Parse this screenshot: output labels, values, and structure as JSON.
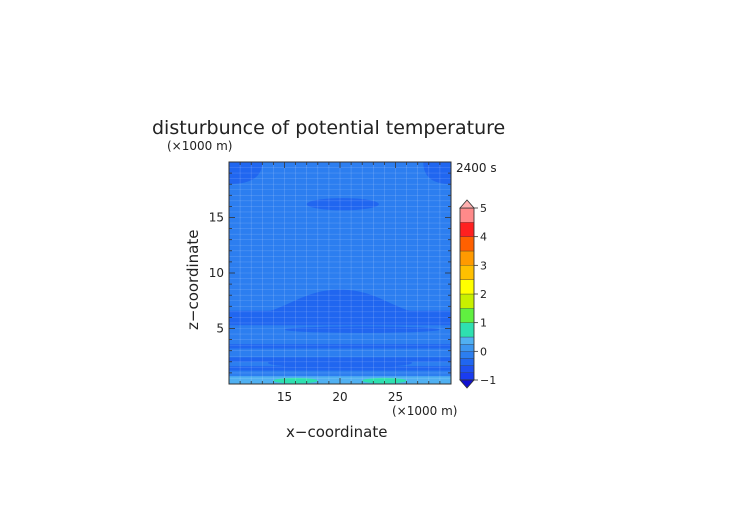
{
  "chart_data": {
    "type": "heatmap",
    "title": "disturbunce of potential temperature",
    "xlabel": "x−coordinate",
    "ylabel": "z−coordinate",
    "x_unit": "(×1000 m)",
    "z_unit": "(×1000 m)",
    "time_label": "2400 s",
    "xlim": [
      10,
      30
    ],
    "ylim": [
      0,
      20
    ],
    "x_ticks": [
      "15",
      "20",
      "25"
    ],
    "y_ticks": [
      "5",
      "10",
      "15"
    ],
    "grid": true,
    "colorbar": {
      "placement": "right",
      "min": -1,
      "max": 5,
      "labels": [
        "5",
        "4",
        "3",
        "2",
        "1",
        "0",
        "−1"
      ],
      "levels": [
        {
          "from": -1.0,
          "to": -0.75,
          "color": "#1a3cf0"
        },
        {
          "from": -0.75,
          "to": -0.5,
          "color": "#1e50f0"
        },
        {
          "from": -0.5,
          "to": -0.25,
          "color": "#2066f0"
        },
        {
          "from": -0.25,
          "to": 0.0,
          "color": "#2c7ef0"
        },
        {
          "from": 0.0,
          "to": 0.25,
          "color": "#3c96f0"
        },
        {
          "from": 0.25,
          "to": 0.5,
          "color": "#50b0f2"
        },
        {
          "from": 0.5,
          "to": 1.0,
          "color": "#2ee0b0"
        },
        {
          "from": 1.0,
          "to": 1.5,
          "color": "#60f040"
        },
        {
          "from": 1.5,
          "to": 2.0,
          "color": "#c8f000"
        },
        {
          "from": 2.0,
          "to": 2.5,
          "color": "#ffff00"
        },
        {
          "from": 2.5,
          "to": 3.0,
          "color": "#ffc000"
        },
        {
          "from": 3.0,
          "to": 3.5,
          "color": "#ff9a00"
        },
        {
          "from": 3.5,
          "to": 4.0,
          "color": "#ff6000"
        },
        {
          "from": 4.0,
          "to": 4.5,
          "color": "#ff2020"
        },
        {
          "from": 4.5,
          "to": 5.0,
          "color": "#ff8a8a"
        }
      ],
      "over_color": "#ffb0b0",
      "under_color": "#1010d0"
    },
    "background_value": -0.1,
    "features": [
      {
        "kind": "band",
        "z_from": 0.0,
        "z_to": 0.7,
        "value": 0.3
      },
      {
        "kind": "band",
        "z_from": 1.2,
        "z_to": 1.6,
        "value": -0.3
      },
      {
        "kind": "band",
        "z_from": 2.0,
        "z_to": 2.4,
        "value": -0.3
      },
      {
        "kind": "band",
        "z_from": 3.2,
        "z_to": 3.6,
        "value": -0.3
      },
      {
        "kind": "band",
        "z_from": 5.3,
        "z_to": 6.6,
        "value": -0.3
      },
      {
        "kind": "dome",
        "x_from": 10,
        "x_to": 30,
        "z_base": 6.0,
        "z_top": 8.5,
        "value": -0.3
      },
      {
        "kind": "lens",
        "x_from": 15,
        "x_to": 29,
        "z": 4.9,
        "half_height": 0.3,
        "value": -0.3
      },
      {
        "kind": "lens",
        "x_from": 13.5,
        "x_to": 26.5,
        "z": 1.9,
        "half_height": 0.45,
        "value": -0.3
      },
      {
        "kind": "lens",
        "x_from": 17,
        "x_to": 23.5,
        "z": 16.2,
        "half_height": 0.55,
        "value": -0.3
      },
      {
        "kind": "lens",
        "x_from": 14,
        "x_to": 18,
        "z": 0.3,
        "half_height": 0.25,
        "value": 0.7
      },
      {
        "kind": "lens",
        "x_from": 22,
        "x_to": 26,
        "z": 0.3,
        "half_height": 0.25,
        "value": 0.7
      },
      {
        "kind": "corner",
        "x_from": 10,
        "x_to": 13,
        "z_from": 18,
        "z_to": 20,
        "value": -0.3
      },
      {
        "kind": "corner",
        "x_from": 27.5,
        "x_to": 30,
        "z_from": 18,
        "z_to": 20,
        "value": -0.3
      }
    ]
  }
}
